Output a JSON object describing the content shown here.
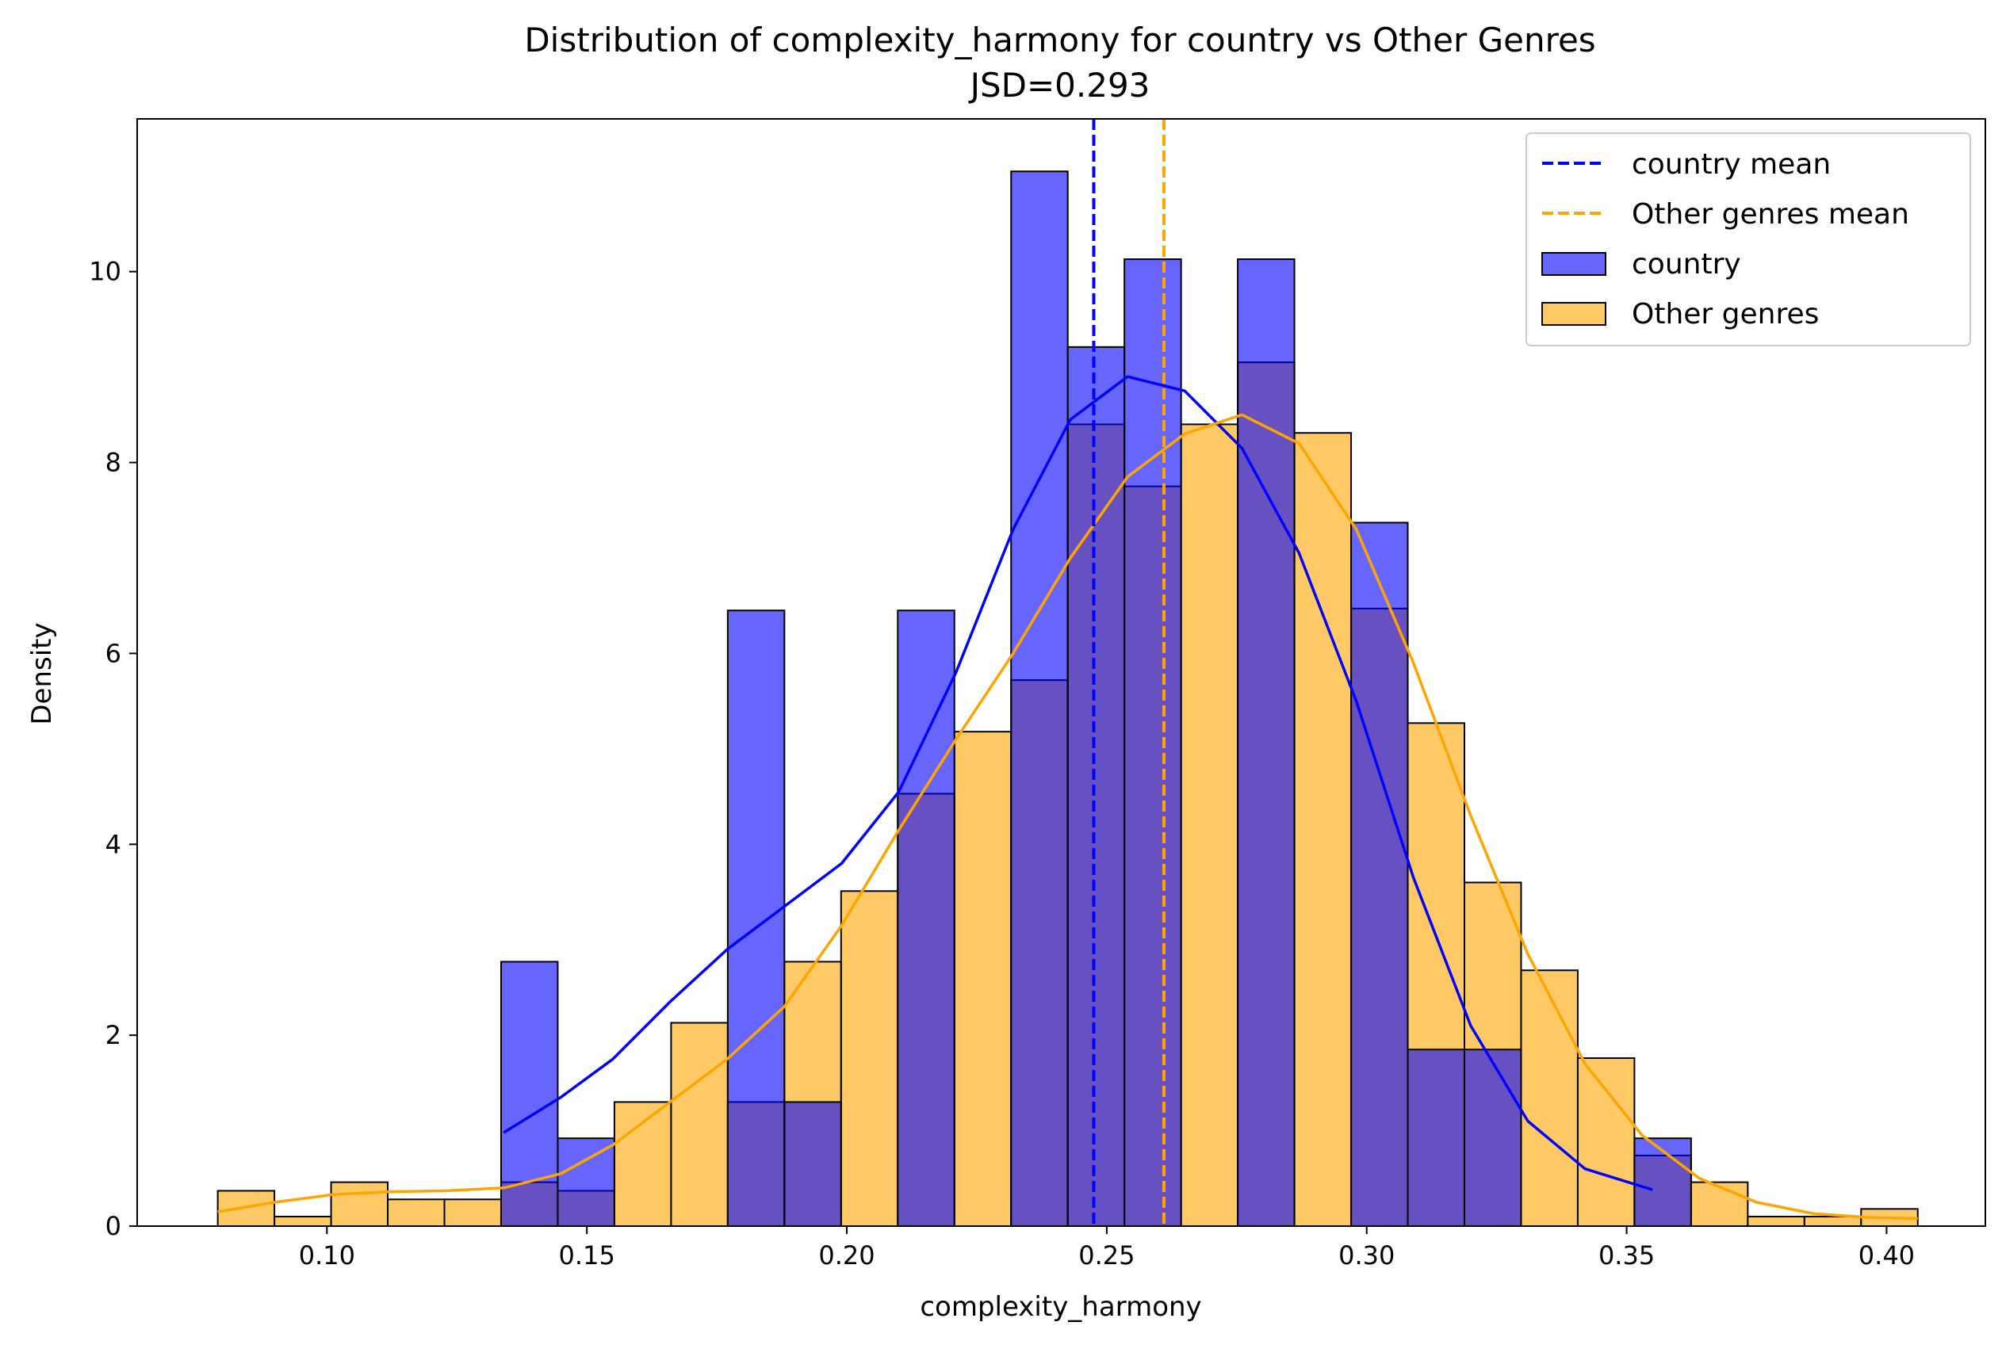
{
  "chart_data": {
    "type": "histogram",
    "title": "Distribution of complexity_harmony for country vs Other Genres",
    "subtitle": "JSD=0.293",
    "xlabel": "complexity_harmony",
    "ylabel": "Density",
    "xlim": [
      0.0635,
      0.419
    ],
    "ylim": [
      0,
      11.6
    ],
    "xticks": [
      0.1,
      0.15,
      0.2,
      0.25,
      0.3,
      0.35,
      0.4
    ],
    "xtick_labels": [
      "0.10",
      "0.15",
      "0.20",
      "0.25",
      "0.30",
      "0.35",
      "0.40"
    ],
    "yticks": [
      0,
      2,
      4,
      6,
      8,
      10
    ],
    "ytick_labels": [
      "0",
      "2",
      "4",
      "6",
      "8",
      "10"
    ],
    "legend_position": "top-right",
    "bin_edges": [
      0.079,
      0.0899,
      0.1008,
      0.1117,
      0.1226,
      0.1335,
      0.1444,
      0.1553,
      0.1662,
      0.1771,
      0.188,
      0.1989,
      0.2098,
      0.2207,
      0.2316,
      0.2425,
      0.2534,
      0.2643,
      0.2752,
      0.2861,
      0.297,
      0.3079,
      0.3188,
      0.3297,
      0.3406,
      0.3515,
      0.3624,
      0.3733,
      0.3842,
      0.3951,
      0.406
    ],
    "series": [
      {
        "name": "country",
        "color": "#0000ff",
        "fill_opacity": 0.6,
        "values": [
          0,
          0,
          0,
          0,
          0,
          2.77,
          0.92,
          0,
          0,
          6.45,
          1.3,
          0,
          6.45,
          0,
          11.05,
          9.21,
          10.13,
          0,
          10.13,
          0,
          7.37,
          1.85,
          1.85,
          0,
          0,
          0.92,
          0,
          0,
          0,
          0
        ],
        "kde_x": [
          0.134,
          0.145,
          0.155,
          0.166,
          0.177,
          0.188,
          0.199,
          0.21,
          0.221,
          0.232,
          0.243,
          0.254,
          0.265,
          0.276,
          0.287,
          0.298,
          0.309,
          0.32,
          0.331,
          0.342,
          0.355
        ],
        "kde_y": [
          0.98,
          1.35,
          1.75,
          2.35,
          2.9,
          3.35,
          3.8,
          4.55,
          5.8,
          7.3,
          8.45,
          8.9,
          8.75,
          8.15,
          7.05,
          5.5,
          3.65,
          2.1,
          1.1,
          0.6,
          0.38
        ],
        "mean": 0.2475,
        "mean_label": "country mean"
      },
      {
        "name": "Other genres",
        "color": "#ffa500",
        "fill_opacity": 0.6,
        "values": [
          0.37,
          0.1,
          0.46,
          0.28,
          0.28,
          0.46,
          0.37,
          1.3,
          2.13,
          1.3,
          2.77,
          3.51,
          4.53,
          5.18,
          5.72,
          8.4,
          7.75,
          8.4,
          9.05,
          8.31,
          6.47,
          5.27,
          3.6,
          2.68,
          1.76,
          0.74,
          0.46,
          0.1,
          0.1,
          0.18
        ],
        "kde_x": [
          0.079,
          0.09,
          0.101,
          0.112,
          0.123,
          0.134,
          0.145,
          0.155,
          0.166,
          0.177,
          0.188,
          0.199,
          0.21,
          0.221,
          0.232,
          0.243,
          0.254,
          0.265,
          0.276,
          0.287,
          0.298,
          0.309,
          0.32,
          0.331,
          0.342,
          0.353,
          0.364,
          0.375,
          0.386,
          0.397,
          0.406
        ],
        "kde_y": [
          0.15,
          0.25,
          0.33,
          0.36,
          0.37,
          0.4,
          0.55,
          0.85,
          1.3,
          1.75,
          2.3,
          3.15,
          4.15,
          5.1,
          6.0,
          7.0,
          7.85,
          8.3,
          8.5,
          8.2,
          7.3,
          5.9,
          4.3,
          2.85,
          1.7,
          0.95,
          0.5,
          0.25,
          0.13,
          0.09,
          0.08
        ],
        "mean": 0.261,
        "mean_label": "Other genres mean"
      }
    ]
  }
}
